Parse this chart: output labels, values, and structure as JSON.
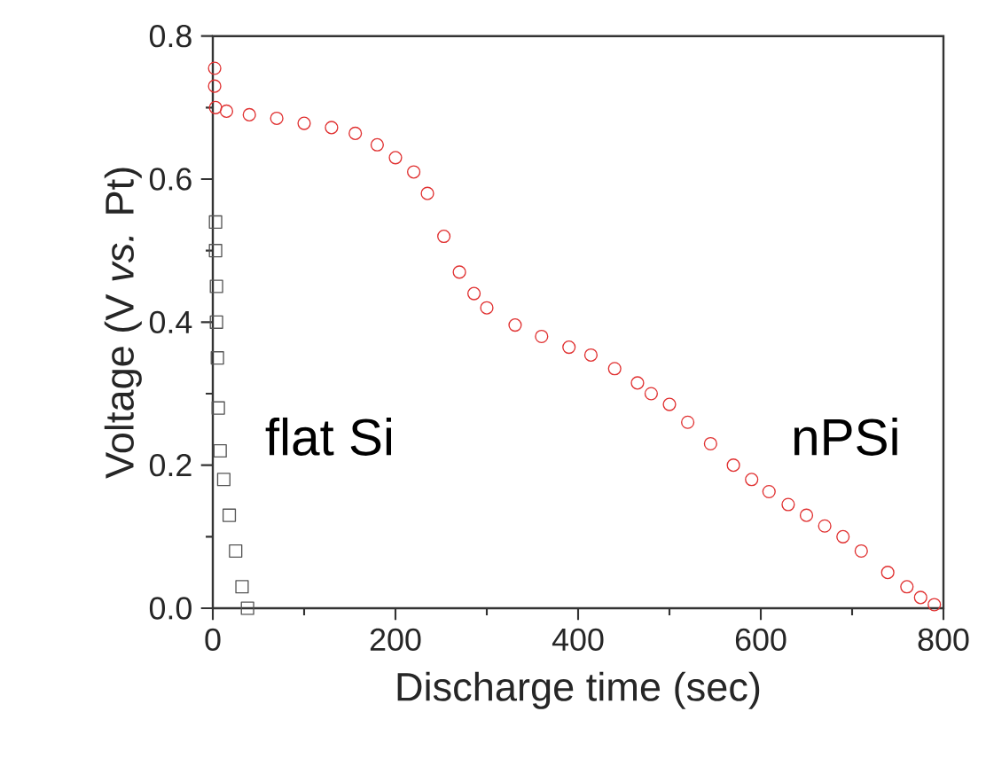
{
  "chart_data": {
    "type": "scatter",
    "xlabel": "Discharge time (sec)",
    "ylabel": "Voltage (V *vs.* Pt)",
    "xlim": [
      0,
      800
    ],
    "ylim": [
      0,
      0.8
    ],
    "xticks": [
      0,
      200,
      400,
      600,
      800
    ],
    "yticks": [
      {
        "value": 0,
        "label": "0.0"
      },
      0.2,
      0.4,
      0.6,
      0.8
    ],
    "grid": false,
    "legend": false,
    "series": [
      {
        "name": "flat Si",
        "color": "#555555",
        "marker": "square",
        "x": [
          3,
          3,
          4,
          4,
          5,
          6,
          8,
          12,
          18,
          25,
          32,
          38
        ],
        "values": [
          0.54,
          0.5,
          0.45,
          0.4,
          0.35,
          0.28,
          0.22,
          0.18,
          0.13,
          0.08,
          0.03,
          0.0
        ]
      },
      {
        "name": "nPSi",
        "color": "#e03030",
        "marker": "circle",
        "x": [
          2,
          2,
          3,
          15,
          40,
          70,
          100,
          130,
          156,
          180,
          200,
          220,
          235,
          253,
          270,
          286,
          300,
          331,
          360,
          390,
          414,
          440,
          465,
          480,
          500,
          520,
          545,
          570,
          590,
          609,
          630,
          650,
          670,
          690,
          710,
          739,
          760,
          775,
          790
        ],
        "values": [
          0.755,
          0.73,
          0.7,
          0.695,
          0.69,
          0.685,
          0.678,
          0.672,
          0.664,
          0.648,
          0.63,
          0.61,
          0.58,
          0.52,
          0.47,
          0.44,
          0.42,
          0.396,
          0.38,
          0.365,
          0.354,
          0.335,
          0.315,
          0.3,
          0.285,
          0.26,
          0.23,
          0.2,
          0.18,
          0.163,
          0.145,
          0.13,
          0.115,
          0.1,
          0.08,
          0.05,
          0.03,
          0.015,
          0.005
        ]
      }
    ]
  }
}
